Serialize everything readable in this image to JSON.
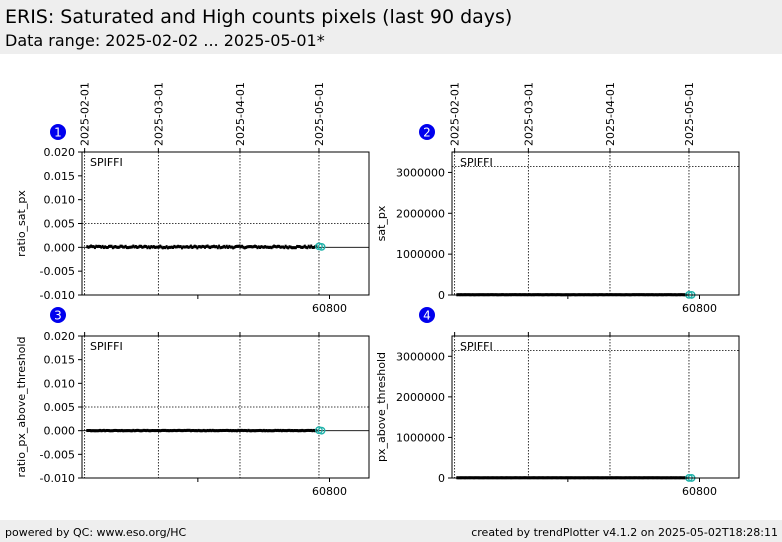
{
  "header": {
    "title": "ERIS: Saturated and High counts pixels (last 90 days)",
    "subtitle": "Data range: 2025-02-02 ... 2025-05-01*"
  },
  "footer": {
    "left": "powered by QC: www.eso.org/HC",
    "right": "created by trendPlotter v4.1.2 on 2025-05-02T18:28:11"
  },
  "colors": {
    "marker_badge": "#0000ee",
    "data_points": "#000000",
    "latest_points": "#20b2aa",
    "header_background": "#eeeeee"
  },
  "chart_data": [
    {
      "panel": "1",
      "type": "scatter",
      "instrument_label": "SPIFFI",
      "ylabel": "ratio_sat_px",
      "ylim": [
        -0.01,
        0.02
      ],
      "yticks": [
        "0.020",
        "0.015",
        "0.010",
        "0.005",
        "0.000",
        "-0.005",
        "-0.010"
      ],
      "ytick_values": [
        0.02,
        0.015,
        0.01,
        0.005,
        0.0,
        -0.005,
        -0.01
      ],
      "xlim_mjd": [
        60706,
        60815
      ],
      "top_axis_dates": [
        "2025-02-01",
        "2025-03-01",
        "2025-04-01",
        "2025-05-01"
      ],
      "date_mjd": [
        60707,
        60735,
        60766,
        60796
      ],
      "bottom_tick_label": "60800",
      "bottom_tick_mjd": [
        60800
      ],
      "threshold": 0.005,
      "zero_line": 0.0,
      "data_series": {
        "x_range_mjd": [
          60708,
          60795
        ],
        "y_baseline": 0.0,
        "y_scatter": 0.0004,
        "n_points": 180
      },
      "latest_points": {
        "x_mjd": [
          60796,
          60797
        ],
        "y": [
          0.0002,
          0.0001
        ]
      }
    },
    {
      "panel": "2",
      "type": "scatter",
      "instrument_label": "SPIFFI",
      "ylabel": "sat_px",
      "ylim": [
        0,
        3500000
      ],
      "yticks": [
        "3000000",
        "2000000",
        "1000000",
        "0"
      ],
      "ytick_values": [
        3000000,
        2000000,
        1000000,
        0
      ],
      "xlim_mjd": [
        60706,
        60815
      ],
      "top_axis_dates": [
        "2025-02-01",
        "2025-03-01",
        "2025-04-01",
        "2025-05-01"
      ],
      "date_mjd": [
        60707,
        60735,
        60766,
        60796
      ],
      "bottom_tick_label": "60800",
      "bottom_tick_mjd": [
        60800
      ],
      "threshold": 3145728,
      "data_series": {
        "x_range_mjd": [
          60708,
          60795
        ],
        "y_baseline": 6000,
        "y_scatter": 4000,
        "n_points": 180
      },
      "latest_points": {
        "x_mjd": [
          60796,
          60797
        ],
        "y": [
          3000,
          2000
        ]
      }
    },
    {
      "panel": "3",
      "type": "scatter",
      "instrument_label": "SPIFFI",
      "ylabel": "ratio_px_above_threshold",
      "ylim": [
        -0.01,
        0.02
      ],
      "yticks": [
        "0.020",
        "0.015",
        "0.010",
        "0.005",
        "0.000",
        "-0.005",
        "-0.010"
      ],
      "ytick_values": [
        0.02,
        0.015,
        0.01,
        0.005,
        0.0,
        -0.005,
        -0.01
      ],
      "xlim_mjd": [
        60706,
        60815
      ],
      "top_axis_dates": [],
      "date_mjd": [
        60707,
        60735,
        60766,
        60796
      ],
      "bottom_tick_label": "60800",
      "bottom_tick_mjd": [
        60800
      ],
      "threshold": 0.005,
      "zero_line": 0.0,
      "data_series": {
        "x_range_mjd": [
          60708,
          60795
        ],
        "y_baseline": 0.0,
        "y_scatter": 0.0001,
        "n_points": 180
      },
      "latest_points": {
        "x_mjd": [
          60796,
          60797
        ],
        "y": [
          0.0001,
          0.0
        ]
      }
    },
    {
      "panel": "4",
      "type": "scatter",
      "instrument_label": "SPIFFI",
      "ylabel": "px_above_threshold",
      "ylim": [
        0,
        3500000
      ],
      "yticks": [
        "3000000",
        "2000000",
        "1000000",
        "0"
      ],
      "ytick_values": [
        3000000,
        2000000,
        1000000,
        0
      ],
      "xlim_mjd": [
        60706,
        60815
      ],
      "top_axis_dates": [],
      "date_mjd": [
        60707,
        60735,
        60766,
        60796
      ],
      "bottom_tick_label": "60800",
      "bottom_tick_mjd": [
        60800
      ],
      "threshold": 3145728,
      "data_series": {
        "x_range_mjd": [
          60708,
          60795
        ],
        "y_baseline": 5000,
        "y_scatter": 2000,
        "n_points": 180
      },
      "latest_points": {
        "x_mjd": [
          60796,
          60797
        ],
        "y": [
          2000,
          1000
        ]
      }
    }
  ]
}
